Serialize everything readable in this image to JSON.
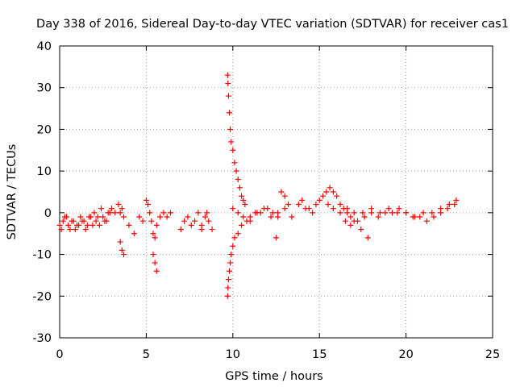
{
  "chart_data": {
    "type": "scatter",
    "title": "Day 338 of 2016, Sidereal Day-to-day VTEC variation (SDTVAR) for receiver cas1",
    "xlabel": "GPS time / hours",
    "ylabel": "SDTVAR / TECUs",
    "xlim": [
      0,
      25
    ],
    "ylim": [
      -30,
      40
    ],
    "xticks": [
      0,
      5,
      10,
      15,
      20,
      25
    ],
    "yticks": [
      -30,
      -20,
      -10,
      0,
      10,
      20,
      30,
      40
    ],
    "xtick_labels": [
      "0",
      "5",
      "10",
      "15",
      "20",
      "25"
    ],
    "ytick_labels": [
      "-30",
      "-20",
      "-10",
      "0",
      "10",
      "20",
      "30",
      "40"
    ],
    "grid": true,
    "marker": "+",
    "color": "#ff0000",
    "series": [
      {
        "name": "SDTVAR",
        "x": [
          0.0,
          0.2,
          0.4,
          0.6,
          0.8,
          1.0,
          1.2,
          1.4,
          1.6,
          1.8,
          2.0,
          2.2,
          2.4,
          2.6,
          2.8,
          3.0,
          3.2,
          0.1,
          0.3,
          0.5,
          0.7,
          0.9,
          1.1,
          1.3,
          1.5,
          1.7,
          1.9,
          2.1,
          2.3,
          2.5,
          2.7,
          2.9,
          3.4,
          3.5,
          3.6,
          3.7,
          3.5,
          3.6,
          3.7,
          4.0,
          4.3,
          4.6,
          4.8,
          5.0,
          5.1,
          5.2,
          5.3,
          5.4,
          5.5,
          5.6,
          5.8,
          6.0,
          6.2,
          6.4,
          5.4,
          5.5,
          5.6,
          7.0,
          7.2,
          7.4,
          7.6,
          7.8,
          8.0,
          8.2,
          8.4,
          8.6,
          8.8,
          9.7,
          9.72,
          9.75,
          9.8,
          9.85,
          9.9,
          10.0,
          10.1,
          10.2,
          10.3,
          10.4,
          10.5,
          10.6,
          10.7,
          9.7,
          9.72,
          9.75,
          9.8,
          9.85,
          9.9,
          10.0,
          10.1,
          10.3,
          10.5,
          10.8,
          11.0,
          11.3,
          11.6,
          12.0,
          12.3,
          12.6,
          10.0,
          10.3,
          10.6,
          11.0,
          11.4,
          11.8,
          12.2,
          12.6,
          13.0,
          13.4,
          13.8,
          14.2,
          14.6,
          12.8,
          13.0,
          13.2,
          14.0,
          14.4,
          14.8,
          15.0,
          15.2,
          15.4,
          15.6,
          15.8,
          16.0,
          16.2,
          16.4,
          16.6,
          16.8,
          17.0,
          17.4,
          17.8,
          15.5,
          15.8,
          16.2,
          16.6,
          17.0,
          17.5,
          18.0,
          18.5,
          19.0,
          19.5,
          20.0,
          20.5,
          21.0,
          21.5,
          22.0,
          22.5,
          22.9,
          16.5,
          16.8,
          17.2,
          17.6,
          18.0,
          18.4,
          18.8,
          19.2,
          19.6,
          20.0,
          20.4,
          20.8,
          21.2,
          21.6,
          22.0,
          22.4,
          22.8,
          12.5,
          8.2,
          8.5
        ],
        "y": [
          -3,
          -2,
          -1,
          -4,
          -2,
          -3,
          -1,
          -2,
          -3,
          -1,
          0,
          -1,
          1,
          -2,
          0,
          1,
          0,
          -4,
          -1,
          -3,
          -2,
          -4,
          -3,
          -2,
          -4,
          -1,
          -3,
          -2,
          -3,
          -1,
          -2,
          0,
          2,
          0,
          1,
          -1,
          -7,
          -9,
          -10,
          -3,
          -5,
          -1,
          -2,
          3,
          2,
          0,
          -2,
          -5,
          -6,
          -3,
          -1,
          0,
          -1,
          0,
          -10,
          -12,
          -14,
          -4,
          -2,
          -1,
          -3,
          -2,
          0,
          -4,
          -1,
          -2,
          -4,
          33,
          31,
          28,
          24,
          20,
          17,
          15,
          12,
          10,
          8,
          6,
          4,
          3,
          2,
          -20,
          -18,
          -16,
          -14,
          -12,
          -10,
          -8,
          -6,
          -5,
          -3,
          -2,
          -1,
          0,
          0,
          1,
          0,
          -1,
          1,
          0,
          -1,
          -2,
          0,
          1,
          -1,
          0,
          1,
          -1,
          2,
          1,
          0,
          5,
          4,
          2,
          3,
          1,
          2,
          3,
          4,
          5,
          6,
          5,
          4,
          2,
          1,
          0,
          -1,
          -2,
          -4,
          -6,
          2,
          1,
          0,
          1,
          0,
          0,
          1,
          0,
          1,
          0,
          0,
          -1,
          0,
          0,
          1,
          2,
          3,
          -2,
          -3,
          -2,
          -1,
          0,
          -1,
          0,
          0,
          1,
          0,
          -1,
          -1,
          -2,
          -1,
          0,
          1,
          2,
          -6,
          -3,
          0
        ]
      }
    ]
  }
}
